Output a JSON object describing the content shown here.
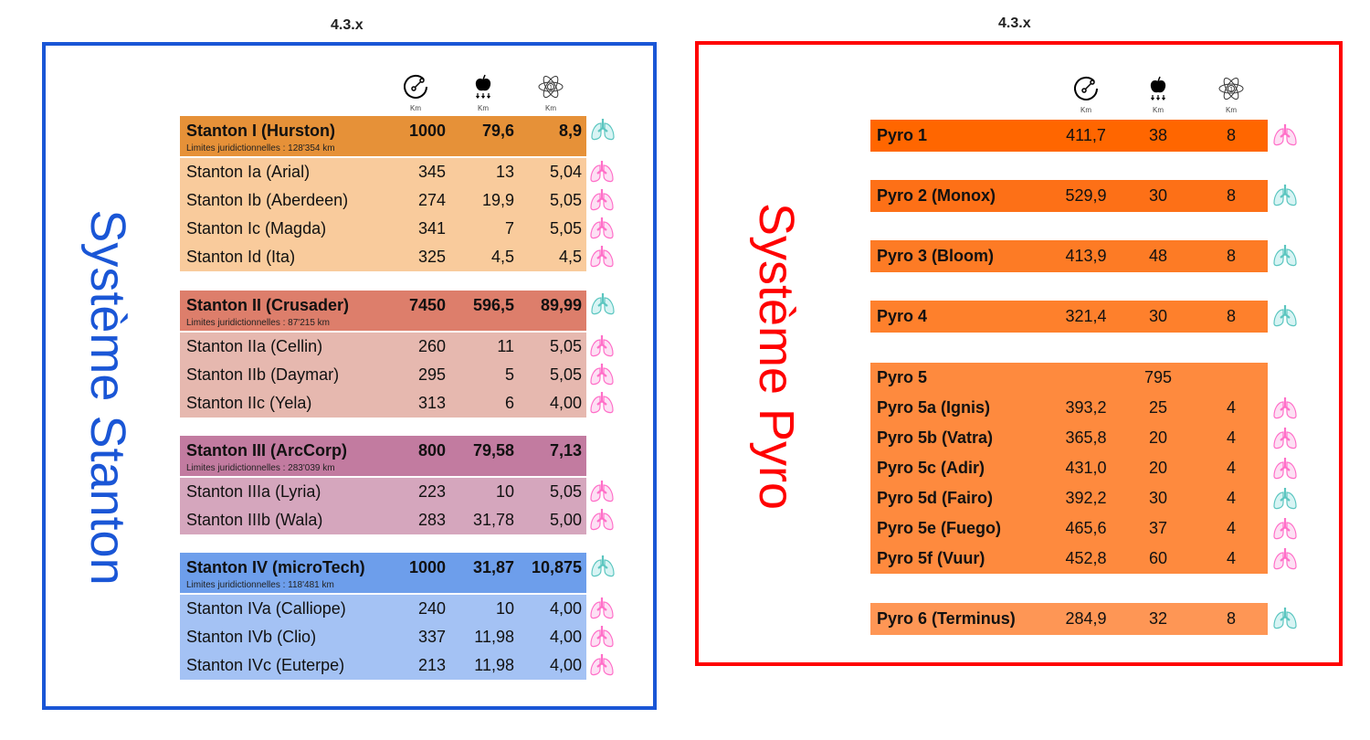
{
  "version_left": "4.3.x",
  "version_right": "4.3.x",
  "colors": {
    "stanton_border": "#1a56d6",
    "pyro_border": "#ff0000",
    "lung_pink": "#ff6fc8",
    "lung_teal": "#5cc6c0"
  },
  "header_icons": [
    {
      "icon": "orbit-radius-icon",
      "unit": "Km"
    },
    {
      "icon": "gravity-apple-icon",
      "unit": "Km"
    },
    {
      "icon": "atom-icon",
      "unit": "Km"
    }
  ],
  "stanton": {
    "title": "Système Stanton",
    "groups": [
      {
        "color": "#e69138",
        "row_color": "#f9cb9c",
        "header": {
          "name": "Stanton I (Hurston)",
          "v": [
            "1000",
            "79,6",
            "8,9"
          ],
          "limits": "Limites juridictionnelles : 128'354 km",
          "lung": "teal"
        },
        "rows": [
          {
            "name": "Stanton Ia (Arial)",
            "v": [
              "345",
              "13",
              "5,04"
            ],
            "lung": "pink"
          },
          {
            "name": "Stanton Ib (Aberdeen)",
            "v": [
              "274",
              "19,9",
              "5,05"
            ],
            "lung": "pink"
          },
          {
            "name": "Stanton Ic (Magda)",
            "v": [
              "341",
              "7",
              "5,05"
            ],
            "lung": "pink"
          },
          {
            "name": "Stanton Id (Ita)",
            "v": [
              "325",
              "4,5",
              "4,5"
            ],
            "lung": "pink"
          }
        ]
      },
      {
        "color": "#dd7e6b",
        "row_color": "#e6b8af",
        "header": {
          "name": "Stanton II (Crusader)",
          "v": [
            "7450",
            "596,5",
            "89,99"
          ],
          "limits": "Limites juridictionnelles : 87'215 km",
          "lung": "teal"
        },
        "rows": [
          {
            "name": "Stanton IIa (Cellin)",
            "v": [
              "260",
              "11",
              "5,05"
            ],
            "lung": "pink"
          },
          {
            "name": "Stanton IIb (Daymar)",
            "v": [
              "295",
              "5",
              "5,05"
            ],
            "lung": "pink"
          },
          {
            "name": "Stanton IIc (Yela)",
            "v": [
              "313",
              "6",
              "4,00"
            ],
            "lung": "pink"
          }
        ]
      },
      {
        "color": "#c27ba0",
        "row_color": "#d5a6bd",
        "header": {
          "name": "Stanton III (ArcCorp)",
          "v": [
            "800",
            "79,58",
            "7,13"
          ],
          "limits": "Limites juridictionnelles : 283'039 km",
          "lung": ""
        },
        "rows": [
          {
            "name": "Stanton IIIa (Lyria)",
            "v": [
              "223",
              "10",
              "5,05"
            ],
            "lung": "pink"
          },
          {
            "name": "Stanton IIIb (Wala)",
            "v": [
              "283",
              "31,78",
              "5,00"
            ],
            "lung": "pink"
          }
        ]
      },
      {
        "color": "#6d9eeb",
        "row_color": "#a4c2f4",
        "header": {
          "name": "Stanton IV (microTech)",
          "v": [
            "1000",
            "31,87",
            "10,875"
          ],
          "limits": "Limites juridictionnelles : 118'481 km",
          "lung": "teal"
        },
        "rows": [
          {
            "name": "Stanton IVa (Calliope)",
            "v": [
              "240",
              "10",
              "4,00"
            ],
            "lung": "pink"
          },
          {
            "name": "Stanton IVb (Clio)",
            "v": [
              "337",
              "11,98",
              "4,00"
            ],
            "lung": "pink"
          },
          {
            "name": "Stanton IVc (Euterpe)",
            "v": [
              "213",
              "11,98",
              "4,00"
            ],
            "lung": "pink"
          }
        ]
      }
    ]
  },
  "pyro": {
    "title": "Système Pyro",
    "groups": [
      {
        "color": "#ff6600",
        "rows": [
          {
            "name": "Pyro 1",
            "v": [
              "411,7",
              "38",
              "8"
            ],
            "lung": "pink"
          }
        ]
      },
      {
        "color": "#fd7017",
        "rows": [
          {
            "name": "Pyro 2 (Monox)",
            "v": [
              "529,9",
              "30",
              "8"
            ],
            "lung": "teal"
          }
        ]
      },
      {
        "color": "#fd7b25",
        "rows": [
          {
            "name": "Pyro 3 (Bloom)",
            "v": [
              "413,9",
              "48",
              "8"
            ],
            "lung": "teal"
          }
        ]
      },
      {
        "color": "#fe802c",
        "rows": [
          {
            "name": "Pyro 4",
            "v": [
              "321,4",
              "30",
              "8"
            ],
            "lung": "teal"
          }
        ]
      },
      {
        "color": "#fe8a3e",
        "rows": [
          {
            "name": "Pyro 5",
            "v": [
              "",
              "795",
              ""
            ],
            "lung": ""
          },
          {
            "name": "Pyro 5a (Ignis)",
            "v": [
              "393,2",
              "25",
              "4"
            ],
            "lung": "pink"
          },
          {
            "name": "Pyro 5b (Vatra)",
            "v": [
              "365,8",
              "20",
              "4"
            ],
            "lung": "pink"
          },
          {
            "name": "Pyro 5c (Adir)",
            "v": [
              "431,0",
              "20",
              "4"
            ],
            "lung": "pink"
          },
          {
            "name": "Pyro 5d (Fairo)",
            "v": [
              "392,2",
              "30",
              "4"
            ],
            "lung": "teal"
          },
          {
            "name": "Pyro 5e (Fuego)",
            "v": [
              "465,6",
              "37",
              "4"
            ],
            "lung": "pink"
          },
          {
            "name": "Pyro 5f (Vuur)",
            "v": [
              "452,8",
              "60",
              "4"
            ],
            "lung": "pink"
          }
        ]
      },
      {
        "color": "#fe9655",
        "rows": [
          {
            "name": "Pyro 6 (Terminus)",
            "v": [
              "284,9",
              "32",
              "8"
            ],
            "lung": "teal"
          }
        ]
      }
    ]
  }
}
